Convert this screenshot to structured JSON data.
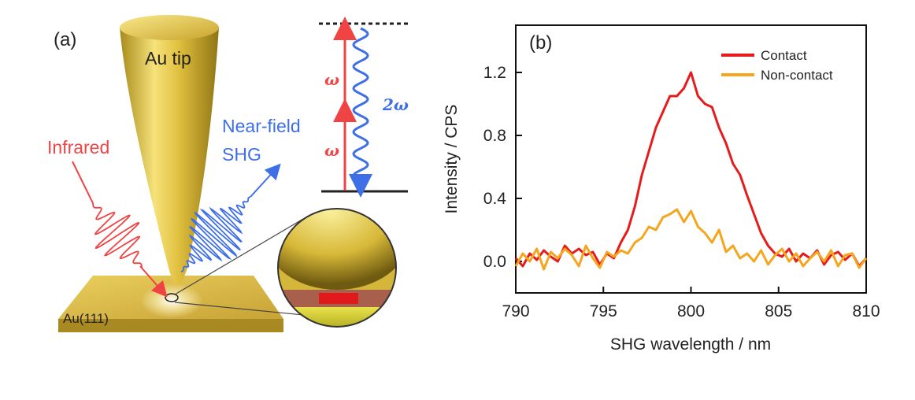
{
  "panel_a": {
    "label": "(a)",
    "tip_label": "Au tip",
    "infrared_label": "Infrared",
    "nearfield_line1": "Near-field",
    "nearfield_line2": "SHG",
    "substrate_label": "Au(111)",
    "energy_omega_upper": "ω",
    "energy_omega_lower": "ω",
    "energy_2omega": "2ω",
    "colors": {
      "gold": "#d9b53a",
      "infrared": "#ee4444",
      "shg": "#3f6fe6",
      "level": "#222222"
    }
  },
  "chart_data": {
    "type": "line",
    "panel_label": "(b)",
    "xlabel": "SHG wavelength / nm",
    "ylabel": "Intensity / CPS",
    "xlim": [
      790,
      810
    ],
    "ylim": [
      -0.2,
      1.5
    ],
    "xticks": [
      "790",
      "795",
      "800",
      "805",
      "810"
    ],
    "yticks": [
      "0.0",
      "0.4",
      "0.8",
      "1.2"
    ],
    "legend_position": "top-right",
    "x": [
      790.0,
      790.4,
      790.8,
      791.2,
      791.6,
      792.0,
      792.4,
      792.8,
      793.2,
      793.6,
      794.0,
      794.4,
      794.8,
      795.2,
      795.6,
      796.0,
      796.4,
      796.8,
      797.2,
      797.6,
      798.0,
      798.4,
      798.8,
      799.2,
      799.6,
      800.0,
      800.4,
      800.8,
      801.2,
      801.6,
      802.0,
      802.4,
      802.8,
      803.2,
      803.6,
      804.0,
      804.4,
      804.8,
      805.2,
      805.6,
      806.0,
      806.4,
      806.8,
      807.2,
      807.6,
      808.0,
      808.4,
      808.8,
      809.2,
      809.6,
      810.0
    ],
    "series": [
      {
        "name": "Contact",
        "color": "#e61b1b",
        "values": [
          0.02,
          -0.03,
          0.05,
          0.01,
          0.07,
          0.03,
          0.0,
          0.1,
          0.05,
          0.08,
          0.04,
          0.06,
          -0.02,
          0.05,
          0.02,
          0.12,
          0.2,
          0.35,
          0.55,
          0.7,
          0.85,
          0.95,
          1.05,
          1.05,
          1.1,
          1.2,
          1.05,
          1.0,
          0.98,
          0.85,
          0.75,
          0.62,
          0.55,
          0.42,
          0.3,
          0.18,
          0.1,
          0.05,
          0.03,
          0.08,
          0.0,
          0.05,
          0.02,
          0.07,
          -0.02,
          0.04,
          0.06,
          0.01,
          0.05,
          -0.03,
          0.02
        ]
      },
      {
        "name": "Non-contact",
        "color": "#f5a51e",
        "values": [
          -0.03,
          0.05,
          0.0,
          0.08,
          -0.05,
          0.06,
          0.02,
          0.08,
          0.04,
          -0.03,
          0.1,
          0.02,
          -0.04,
          0.06,
          0.03,
          0.07,
          0.05,
          0.12,
          0.15,
          0.22,
          0.2,
          0.28,
          0.3,
          0.33,
          0.25,
          0.32,
          0.22,
          0.18,
          0.12,
          0.2,
          0.06,
          0.1,
          0.02,
          0.05,
          0.0,
          0.07,
          -0.02,
          0.04,
          0.08,
          0.0,
          0.05,
          -0.03,
          0.02,
          0.06,
          0.0,
          0.07,
          -0.03,
          0.04,
          0.05,
          -0.04,
          0.02
        ]
      }
    ]
  }
}
